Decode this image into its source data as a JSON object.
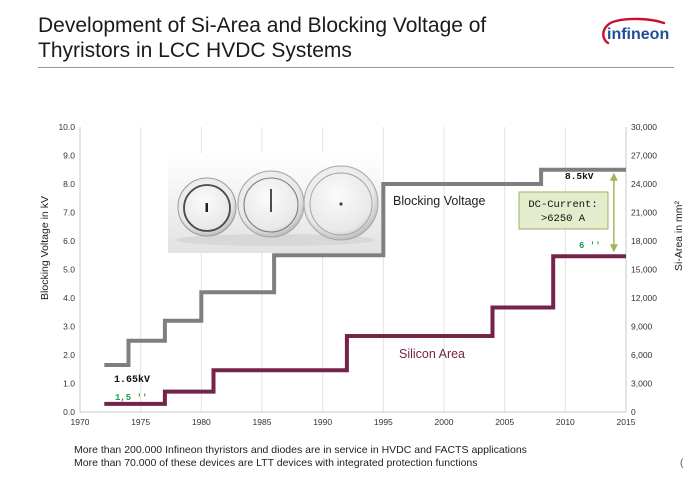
{
  "slide": {
    "title_line1": "Development of Si-Area and Blocking Voltage of",
    "title_line2": "Thyristors in LCC HVDC Systems",
    "logo_text": "infineon",
    "footer_line1": "More than 200.000 Infineon thyristors and diodes are in service in HVDC and FACTS applications",
    "footer_line2": "More than 70.000 of these devices are LTT devices with integrated protection functions",
    "edge_mark": "("
  },
  "colors": {
    "blocking_voltage": "#7f7f7f",
    "silicon_area": "#76234a",
    "annotation_green": "#1e9e4a",
    "callout_fill": "#e4ecce",
    "callout_border": "#9db35c",
    "arrow": "#9db35c",
    "logo_red": "#c8102e",
    "logo_blue": "#1f4e99"
  },
  "chart_data": {
    "type": "line",
    "subtype": "step",
    "x_ticks": [
      1970,
      1975,
      1980,
      1985,
      1990,
      1995,
      2000,
      2005,
      2010,
      2015
    ],
    "xlim": [
      1970,
      2015
    ],
    "left_axis": {
      "label": "Blocking Voltage in kV",
      "ylim": [
        0,
        10
      ],
      "ticks": [
        "0.0",
        "1.0",
        "2.0",
        "3.0",
        "4.0",
        "5.0",
        "6.0",
        "7.0",
        "8.0",
        "9.0",
        "10.0"
      ]
    },
    "right_axis": {
      "label": "Si-Area in mm²",
      "ylim": [
        0,
        30000
      ],
      "ticks": [
        "0",
        "3,000",
        "6,000",
        "9,000",
        "12,000",
        "15,000",
        "18,000",
        "21,000",
        "24,000",
        "27,000",
        "30,000"
      ]
    },
    "grid": "vertical",
    "series": [
      {
        "name": "Blocking Voltage",
        "axis": "left",
        "points": [
          [
            1972,
            1.65
          ],
          [
            1974,
            1.65
          ],
          [
            1974,
            2.5
          ],
          [
            1977,
            2.5
          ],
          [
            1977,
            3.2
          ],
          [
            1980,
            3.2
          ],
          [
            1980,
            4.2
          ],
          [
            1986,
            4.2
          ],
          [
            1986,
            5.5
          ],
          [
            1995,
            5.5
          ],
          [
            1995,
            8.0
          ],
          [
            2008,
            8.0
          ],
          [
            2008,
            8.5
          ],
          [
            2015,
            8.5
          ]
        ]
      },
      {
        "name": "Silicon Area",
        "axis": "right",
        "points": [
          [
            1972,
            850
          ],
          [
            1977,
            850
          ],
          [
            1977,
            2150
          ],
          [
            1981,
            2150
          ],
          [
            1981,
            4400
          ],
          [
            1992,
            4400
          ],
          [
            1992,
            8000
          ],
          [
            2004,
            8000
          ],
          [
            2004,
            11000
          ],
          [
            2009,
            11000
          ],
          [
            2009,
            16400
          ],
          [
            2015,
            16400
          ]
        ]
      }
    ],
    "annotations": {
      "bv_start": "1.65kV",
      "bv_end": "8.5kV",
      "si_start": "1,5 ''",
      "si_end": "6 ''",
      "callout_line1": "DC-Current:",
      "callout_line2": ">6250 A",
      "arrow_from_kv": 8.5,
      "arrow_to_kv": 5.5
    }
  }
}
